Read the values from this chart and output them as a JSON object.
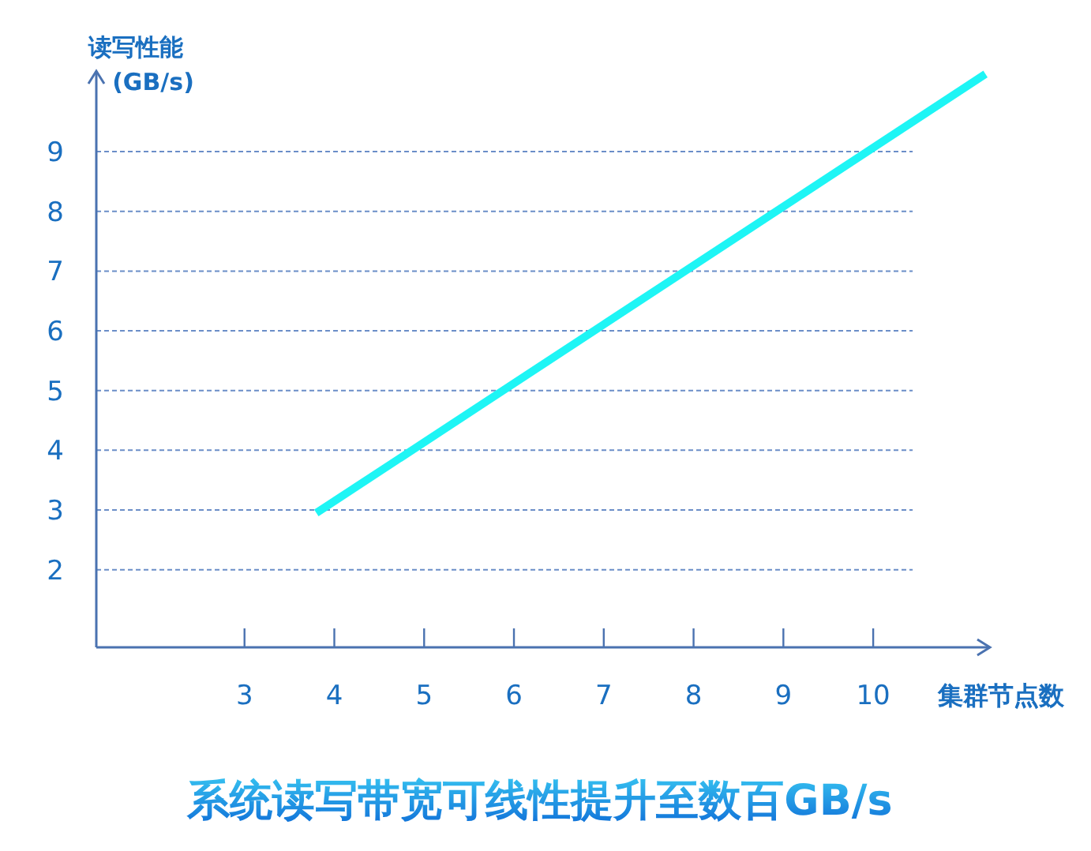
{
  "chart_data": {
    "type": "line",
    "title": "系统读写带宽可线性提升至数百GB/s",
    "xlabel": "集群节点数",
    "ylabel": "读写性能\n(GB/s)",
    "xlim": [
      1.35,
      11.3
    ],
    "ylim": [
      0.7,
      10.35
    ],
    "xticks": [
      3,
      4,
      5,
      6,
      7,
      8,
      9,
      10
    ],
    "yticks": [
      2,
      3,
      4,
      5,
      6,
      7,
      8,
      9
    ],
    "grid": "y",
    "series": [
      {
        "color": "#1ef5f5",
        "x": [
          3.8,
          11.25
        ],
        "values": [
          2.95,
          10.3
        ]
      }
    ]
  }
}
